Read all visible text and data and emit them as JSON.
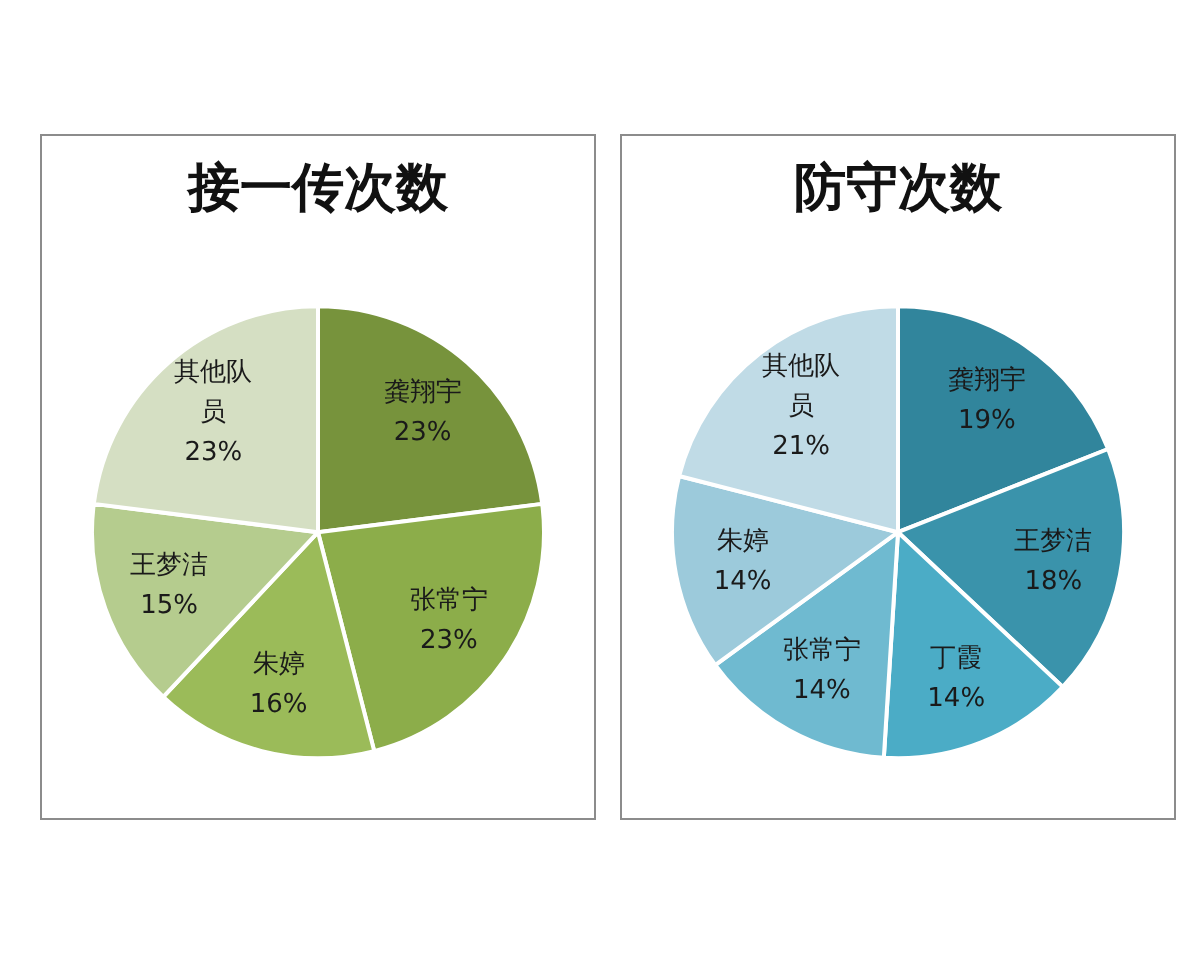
{
  "chart_data": [
    {
      "type": "pie",
      "title": "接一传次数",
      "categories": [
        "龚翔宇",
        "张常宁",
        "朱婷",
        "王梦洁",
        "其他队员"
      ],
      "values": [
        23,
        23,
        16,
        15,
        23
      ],
      "value_labels": [
        "23%",
        "23%",
        "16%",
        "15%",
        "23%"
      ],
      "colors": [
        "#77933c",
        "#8cad4a",
        "#9bbb59",
        "#b5cc8e",
        "#d5dfc3"
      ],
      "legend": false
    },
    {
      "type": "pie",
      "title": "防守次数",
      "categories": [
        "龚翔宇",
        "王梦洁",
        "丁霞",
        "张常宁",
        "朱婷",
        "其他队员"
      ],
      "values": [
        19,
        18,
        14,
        14,
        14,
        21
      ],
      "value_labels": [
        "19%",
        "18%",
        "14%",
        "14%",
        "14%",
        "21%"
      ],
      "colors": [
        "#31859c",
        "#3a93ab",
        "#4bacc6",
        "#6fbad0",
        "#9ccadb",
        "#c0dbe6"
      ],
      "legend": false
    }
  ]
}
